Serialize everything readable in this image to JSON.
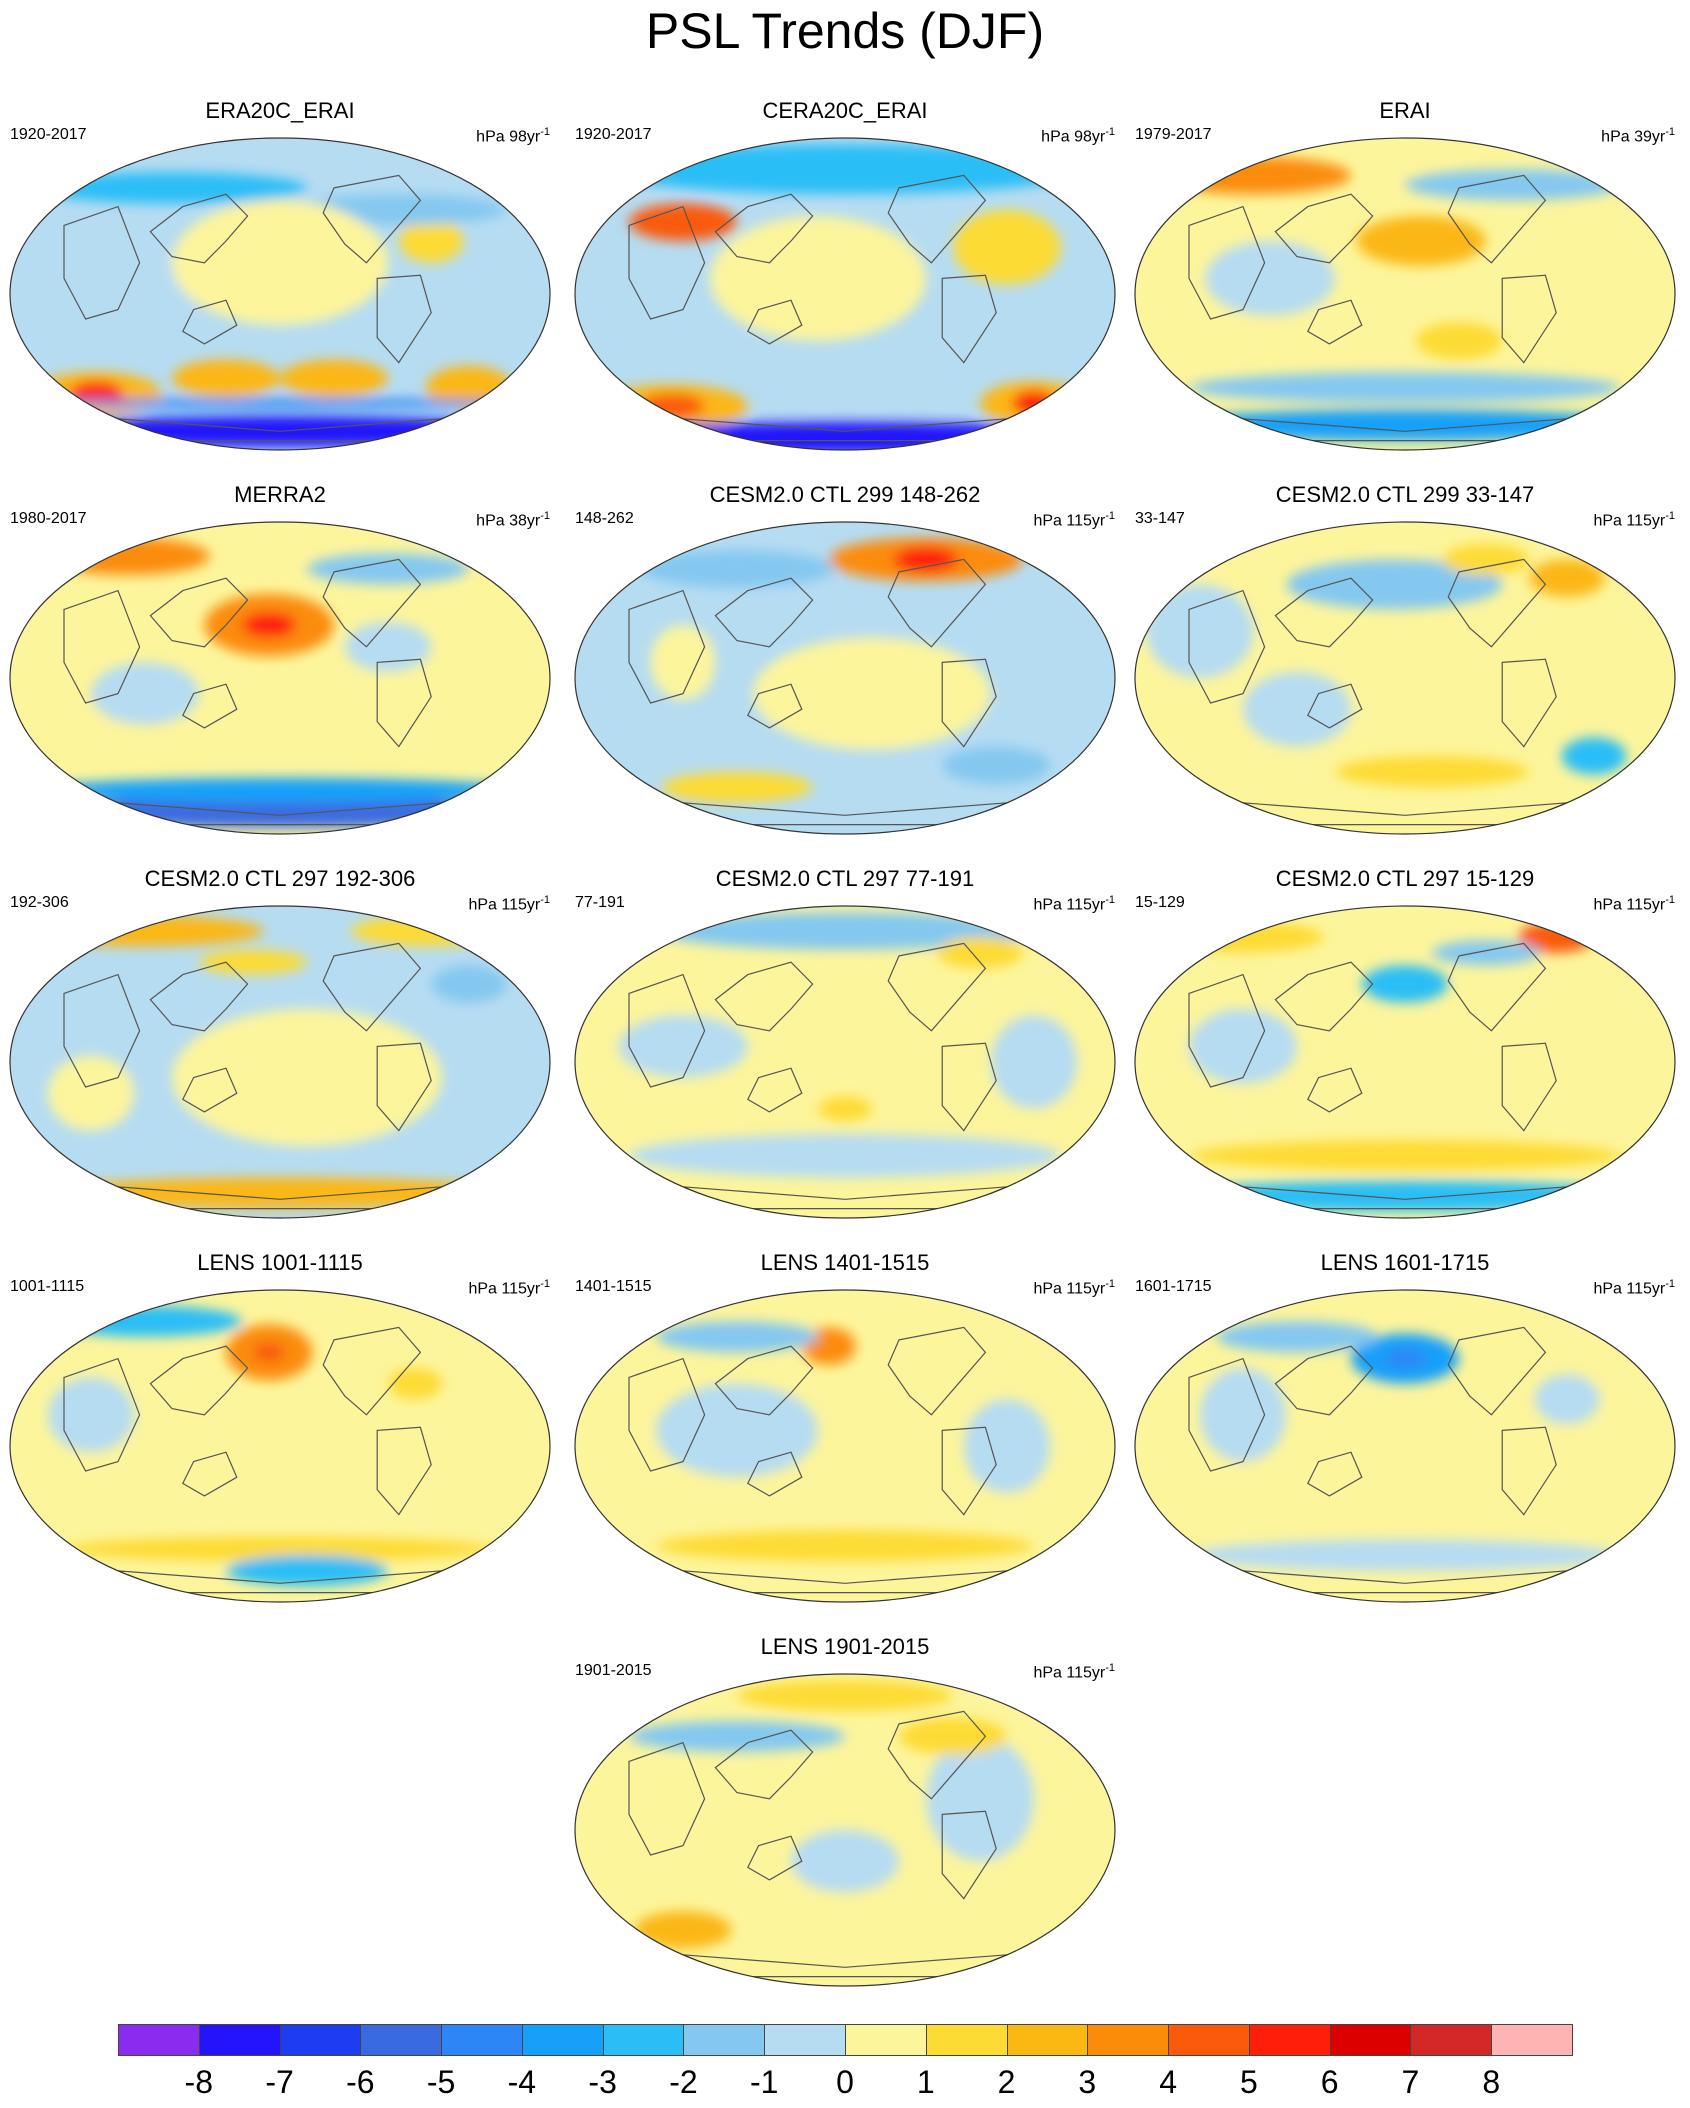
{
  "title": "PSL Trends (DJF)",
  "colorbar": {
    "colors": [
      "#8a2bf0",
      "#2414fa",
      "#1e3cf0",
      "#3a6ae0",
      "#2d86f5",
      "#15a0fa",
      "#2bbef6",
      "#84c8f0",
      "#b6dcf2",
      "#fdf59c",
      "#fddb35",
      "#fbb712",
      "#fb8c0a",
      "#fa5a0a",
      "#ff1e0a",
      "#dc0000",
      "#d22828",
      "#ffb4b4"
    ],
    "labels": [
      "-8",
      "-7",
      "-6",
      "-5",
      "-4",
      "-3",
      "-2",
      "-1",
      "0",
      "1",
      "2",
      "3",
      "4",
      "5",
      "6",
      "7",
      "8"
    ]
  },
  "panels": [
    {
      "title": "ERA20C_ERAI",
      "period": "1920-2017",
      "units": "hPa 98yr",
      "units_exp": "-1",
      "bg": 8,
      "blobs": [
        [
          0.1,
          0.45,
          0.45,
          0.09,
          8
        ],
        [
          0.3,
          0.16,
          0.25,
          0.05,
          6
        ],
        [
          0.16,
          0.82,
          0.12,
          0.07,
          11
        ],
        [
          0.16,
          0.82,
          0.05,
          0.04,
          14
        ],
        [
          0.4,
          0.77,
          0.1,
          0.06,
          11
        ],
        [
          0.6,
          0.77,
          0.1,
          0.06,
          11
        ],
        [
          0.85,
          0.8,
          0.08,
          0.07,
          11
        ],
        [
          0.78,
          0.33,
          0.06,
          0.07,
          10
        ],
        [
          0.72,
          0.23,
          0.2,
          0.05,
          7
        ],
        [
          0.5,
          0.94,
          0.48,
          0.05,
          1
        ],
        [
          0.5,
          0.85,
          0.48,
          0.015,
          4
        ],
        [
          0.5,
          0.4,
          0.2,
          0.2,
          9
        ]
      ]
    },
    {
      "title": "CERA20C_ERAI",
      "period": "1920-2017",
      "units": "hPa 98yr",
      "units_exp": "-1",
      "bg": 8,
      "blobs": [
        [
          0.5,
          0.1,
          0.45,
          0.08,
          6
        ],
        [
          0.2,
          0.27,
          0.1,
          0.06,
          13
        ],
        [
          0.18,
          0.86,
          0.14,
          0.07,
          11
        ],
        [
          0.18,
          0.86,
          0.06,
          0.04,
          13
        ],
        [
          0.85,
          0.85,
          0.1,
          0.07,
          11
        ],
        [
          0.85,
          0.85,
          0.04,
          0.04,
          14
        ],
        [
          0.8,
          0.35,
          0.1,
          0.12,
          10
        ],
        [
          0.5,
          0.96,
          0.48,
          0.05,
          1
        ],
        [
          0.45,
          0.45,
          0.2,
          0.2,
          9
        ]
      ]
    },
    {
      "title": "ERAI",
      "period": "1979-2017",
      "units": "hPa 39yr",
      "units_exp": "-1",
      "bg": 9,
      "blobs": [
        [
          0.22,
          0.12,
          0.18,
          0.06,
          12
        ],
        [
          0.53,
          0.33,
          0.12,
          0.08,
          11
        ],
        [
          0.25,
          0.45,
          0.12,
          0.12,
          8
        ],
        [
          0.7,
          0.15,
          0.2,
          0.05,
          7
        ],
        [
          0.5,
          0.92,
          0.45,
          0.05,
          5
        ],
        [
          0.5,
          0.8,
          0.4,
          0.05,
          7
        ],
        [
          0.6,
          0.65,
          0.08,
          0.06,
          10
        ]
      ]
    },
    {
      "title": "MERRA2",
      "period": "1980-2017",
      "units": "hPa 38yr",
      "units_exp": "-1",
      "bg": 9,
      "blobs": [
        [
          0.22,
          0.11,
          0.15,
          0.06,
          12
        ],
        [
          0.48,
          0.33,
          0.12,
          0.1,
          12
        ],
        [
          0.48,
          0.33,
          0.05,
          0.04,
          14
        ],
        [
          0.7,
          0.15,
          0.15,
          0.05,
          7
        ],
        [
          0.5,
          0.93,
          0.45,
          0.05,
          3
        ],
        [
          0.5,
          0.86,
          0.45,
          0.04,
          5
        ],
        [
          0.25,
          0.55,
          0.1,
          0.1,
          8
        ],
        [
          0.7,
          0.4,
          0.08,
          0.08,
          8
        ]
      ]
    },
    {
      "title": "CESM2.0 CTL 299 148-262",
      "period": "148-262",
      "units": "hPa 115yr",
      "units_exp": "-1",
      "bg": 8,
      "blobs": [
        [
          0.65,
          0.12,
          0.18,
          0.07,
          12
        ],
        [
          0.65,
          0.12,
          0.06,
          0.04,
          14
        ],
        [
          0.3,
          0.15,
          0.18,
          0.06,
          7
        ],
        [
          0.55,
          0.55,
          0.22,
          0.18,
          9
        ],
        [
          0.3,
          0.85,
          0.14,
          0.05,
          10
        ],
        [
          0.78,
          0.78,
          0.1,
          0.06,
          7
        ],
        [
          0.2,
          0.45,
          0.06,
          0.12,
          9
        ]
      ]
    },
    {
      "title": "CESM2.0 CTL 299 33-147",
      "period": "33-147",
      "units": "hPa 115yr",
      "units_exp": "-1",
      "bg": 9,
      "blobs": [
        [
          0.48,
          0.2,
          0.2,
          0.08,
          7
        ],
        [
          0.8,
          0.18,
          0.07,
          0.06,
          11
        ],
        [
          0.65,
          0.12,
          0.08,
          0.05,
          10
        ],
        [
          0.3,
          0.6,
          0.1,
          0.12,
          8
        ],
        [
          0.55,
          0.8,
          0.18,
          0.05,
          10
        ],
        [
          0.85,
          0.75,
          0.06,
          0.06,
          6
        ],
        [
          0.12,
          0.35,
          0.1,
          0.15,
          8
        ]
      ]
    },
    {
      "title": "CESM2.0 CTL 297 192-306",
      "period": "192-306",
      "units": "hPa 115yr",
      "units_exp": "-1",
      "bg": 8,
      "blobs": [
        [
          0.25,
          0.08,
          0.22,
          0.05,
          11
        ],
        [
          0.78,
          0.08,
          0.15,
          0.05,
          10
        ],
        [
          0.45,
          0.18,
          0.1,
          0.04,
          10
        ],
        [
          0.55,
          0.55,
          0.25,
          0.22,
          9
        ],
        [
          0.5,
          0.92,
          0.45,
          0.05,
          11
        ],
        [
          0.85,
          0.25,
          0.07,
          0.06,
          7
        ],
        [
          0.15,
          0.6,
          0.08,
          0.12,
          9
        ]
      ]
    },
    {
      "title": "CESM2.0 CTL 297 77-191",
      "period": "77-191",
      "units": "hPa 115yr",
      "units_exp": "-1",
      "bg": 9,
      "blobs": [
        [
          0.5,
          0.08,
          0.35,
          0.06,
          7
        ],
        [
          0.2,
          0.45,
          0.12,
          0.1,
          8
        ],
        [
          0.75,
          0.15,
          0.08,
          0.05,
          10
        ],
        [
          0.5,
          0.8,
          0.4,
          0.07,
          8
        ],
        [
          0.5,
          0.65,
          0.05,
          0.04,
          10
        ],
        [
          0.85,
          0.5,
          0.08,
          0.15,
          8
        ]
      ]
    },
    {
      "title": "CESM2.0 CTL 297 15-129",
      "period": "15-129",
      "units": "hPa 115yr",
      "units_exp": "-1",
      "bg": 9,
      "blobs": [
        [
          0.78,
          0.1,
          0.07,
          0.05,
          13
        ],
        [
          0.5,
          0.25,
          0.08,
          0.06,
          6
        ],
        [
          0.2,
          0.1,
          0.15,
          0.05,
          10
        ],
        [
          0.5,
          0.93,
          0.45,
          0.05,
          6
        ],
        [
          0.5,
          0.8,
          0.4,
          0.05,
          10
        ],
        [
          0.2,
          0.45,
          0.1,
          0.12,
          8
        ],
        [
          0.65,
          0.15,
          0.1,
          0.04,
          7
        ]
      ]
    },
    {
      "title": "LENS 1001-1115",
      "period": "1001-1115",
      "units": "hPa 115yr",
      "units_exp": "-1",
      "bg": 9,
      "blobs": [
        [
          0.48,
          0.2,
          0.08,
          0.09,
          12
        ],
        [
          0.48,
          0.2,
          0.03,
          0.03,
          13
        ],
        [
          0.25,
          0.1,
          0.18,
          0.05,
          6
        ],
        [
          0.15,
          0.4,
          0.08,
          0.12,
          8
        ],
        [
          0.5,
          0.83,
          0.4,
          0.04,
          10
        ],
        [
          0.55,
          0.9,
          0.15,
          0.05,
          6
        ],
        [
          0.75,
          0.3,
          0.05,
          0.05,
          10
        ]
      ]
    },
    {
      "title": "LENS 1401-1515",
      "period": "1401-1515",
      "units": "hPa 115yr",
      "units_exp": "-1",
      "bg": 9,
      "blobs": [
        [
          0.47,
          0.18,
          0.05,
          0.06,
          12
        ],
        [
          0.3,
          0.15,
          0.15,
          0.05,
          7
        ],
        [
          0.3,
          0.45,
          0.15,
          0.15,
          8
        ],
        [
          0.5,
          0.82,
          0.35,
          0.05,
          10
        ],
        [
          0.8,
          0.5,
          0.08,
          0.15,
          8
        ]
      ]
    },
    {
      "title": "LENS 1601-1715",
      "period": "1601-1715",
      "units": "hPa 115yr",
      "units_exp": "-1",
      "bg": 9,
      "blobs": [
        [
          0.5,
          0.22,
          0.1,
          0.08,
          5
        ],
        [
          0.5,
          0.22,
          0.04,
          0.03,
          4
        ],
        [
          0.3,
          0.15,
          0.15,
          0.05,
          7
        ],
        [
          0.2,
          0.4,
          0.08,
          0.15,
          8
        ],
        [
          0.5,
          0.85,
          0.4,
          0.05,
          8
        ],
        [
          0.8,
          0.35,
          0.06,
          0.08,
          8
        ]
      ]
    },
    {
      "title": "LENS 1901-2015",
      "period": "1901-2015",
      "units": "hPa 115yr",
      "units_exp": "-1",
      "bg": 9,
      "blobs": [
        [
          0.5,
          0.07,
          0.2,
          0.05,
          10
        ],
        [
          0.3,
          0.2,
          0.2,
          0.05,
          7
        ],
        [
          0.2,
          0.82,
          0.09,
          0.06,
          11
        ],
        [
          0.5,
          0.6,
          0.1,
          0.1,
          8
        ],
        [
          0.75,
          0.4,
          0.1,
          0.2,
          8
        ],
        [
          0.7,
          0.2,
          0.1,
          0.06,
          10
        ]
      ]
    }
  ]
}
